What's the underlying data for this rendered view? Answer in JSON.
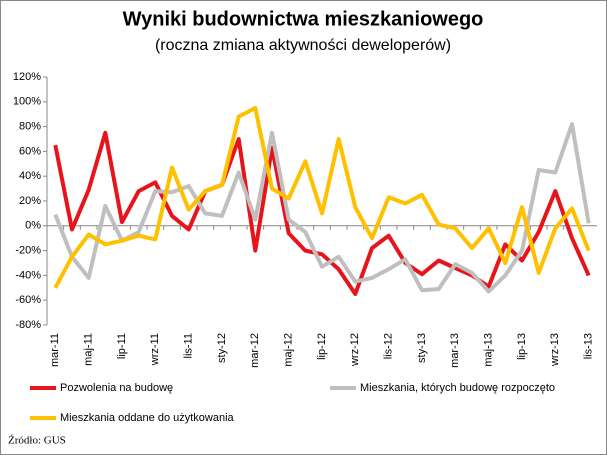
{
  "chart_data": {
    "type": "line",
    "title": "Wyniki budownictwa mieszkaniowego",
    "subtitle": "(roczna zmiana aktywności deweloperów)",
    "source": "Źródło: GUS",
    "categories": [
      "mar-11",
      null,
      "maj-11",
      null,
      "lip-11",
      null,
      "wrz-11",
      null,
      "lis-11",
      null,
      "sty-12",
      null,
      "mar-12",
      null,
      "maj-12",
      null,
      "lip-12",
      null,
      "wrz-12",
      null,
      "lis-12",
      null,
      "sty-13",
      null,
      "mar-13",
      null,
      "maj-13",
      null,
      "lip-13",
      null,
      "wrz-13",
      null,
      "lis-13"
    ],
    "series": [
      {
        "name": "Pozwolenia na budowę",
        "color": "#e8141b",
        "values": [
          65,
          -3,
          29,
          75,
          3,
          28,
          35,
          8,
          -3,
          28,
          33,
          70,
          -20,
          63,
          -6,
          -20,
          -23,
          -35,
          -55,
          -18,
          -8,
          -30,
          -39,
          -28,
          -34,
          -40,
          -49,
          -15,
          -28,
          -5,
          28,
          -10,
          -40
        ]
      },
      {
        "name": "Mieszkania, których budowę rozpoczęto",
        "color": "#bfbfbf",
        "values": [
          9,
          -25,
          -42,
          16,
          -12,
          -5,
          28,
          27,
          32,
          10,
          8,
          43,
          5,
          75,
          5,
          -5,
          -33,
          -25,
          -45,
          -42,
          -35,
          -27,
          -52,
          -51,
          -31,
          -38,
          -53,
          -40,
          -20,
          45,
          43,
          82,
          2
        ]
      },
      {
        "name": "Mieszkania oddane do użytkowania",
        "color": "#ffc000",
        "values": [
          -50,
          -25,
          -7,
          -15,
          -12,
          -8,
          -11,
          47,
          13,
          28,
          33,
          88,
          95,
          30,
          22,
          52,
          10,
          70,
          15,
          -10,
          23,
          18,
          25,
          1,
          -2,
          -18,
          -2,
          -30,
          15,
          -38,
          -2,
          14,
          -20
        ]
      }
    ],
    "ylim": [
      -80,
      120
    ],
    "yticks": [
      {
        "value": -80,
        "label": "-80%"
      },
      {
        "value": -60,
        "label": "-60%"
      },
      {
        "value": -40,
        "label": "-40%"
      },
      {
        "value": -20,
        "label": "-20%"
      },
      {
        "value": 0,
        "label": "0%"
      },
      {
        "value": 20,
        "label": "20%"
      },
      {
        "value": 40,
        "label": "40%"
      },
      {
        "value": 60,
        "label": "60%"
      },
      {
        "value": 80,
        "label": "80%"
      },
      {
        "value": 100,
        "label": "100%"
      },
      {
        "value": 120,
        "label": "120%"
      }
    ],
    "grid": false
  }
}
